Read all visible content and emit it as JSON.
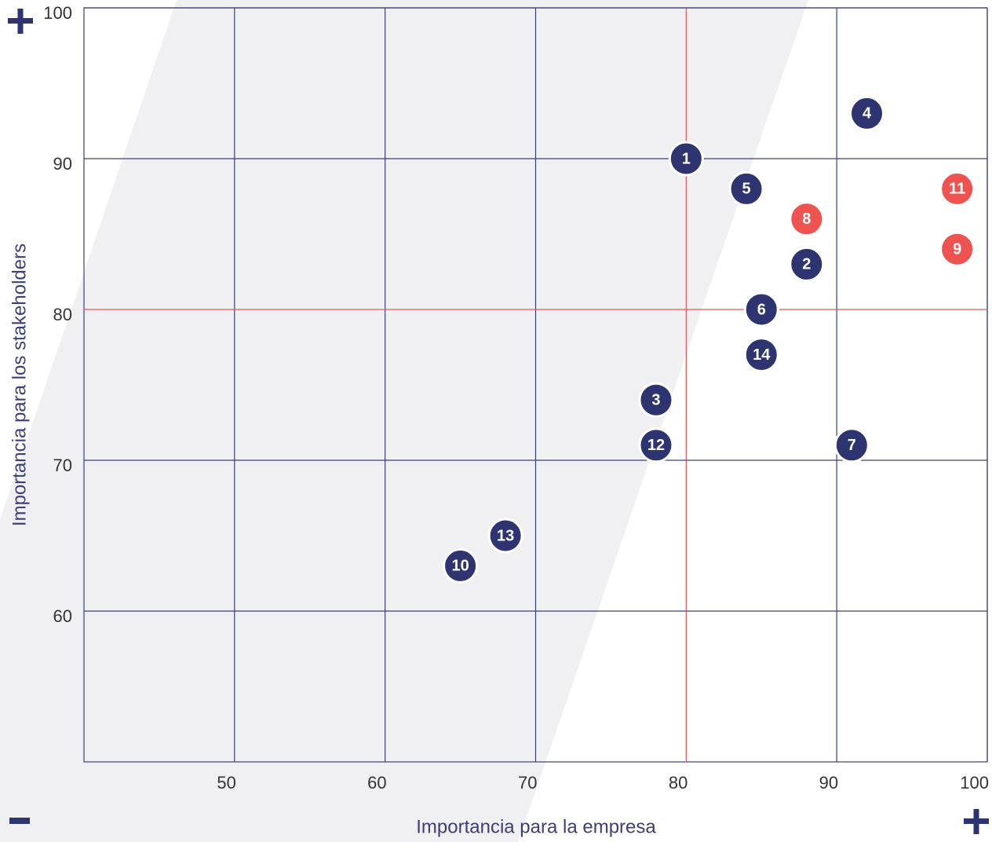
{
  "chart_data": {
    "type": "scatter",
    "x_label": "Importancia para la empresa",
    "y_label": "Importancia para los stakeholders",
    "labels": [
      "1",
      "2",
      "3",
      "4",
      "5",
      "6",
      "7",
      "8",
      "9",
      "10",
      "11",
      "12",
      "13",
      "14"
    ],
    "x": [
      80,
      88,
      78,
      92,
      84,
      85,
      91,
      88,
      98,
      65,
      98,
      78,
      68,
      85
    ],
    "values": [
      90,
      83,
      74,
      93,
      88,
      80,
      71,
      86,
      84,
      63,
      88,
      71,
      65,
      77
    ],
    "colors": [
      "#2e3470",
      "#2e3470",
      "#2e3470",
      "#2e3470",
      "#2e3470",
      "#2e3470",
      "#2e3470",
      "#ef5350",
      "#ef5350",
      "#2e3470",
      "#ef5350",
      "#2e3470",
      "#2e3470",
      "#2e3470"
    ],
    "xlim": [
      40,
      100
    ],
    "ylim": [
      50,
      100
    ],
    "xticks": [
      50,
      60,
      70,
      80,
      90,
      100
    ],
    "yticks": [
      60,
      70,
      80,
      90,
      100
    ],
    "grid": true,
    "grid_color": "#3a3f78",
    "threshold_x": 80,
    "threshold_y": 80,
    "threshold_color": "#ef5350"
  }
}
